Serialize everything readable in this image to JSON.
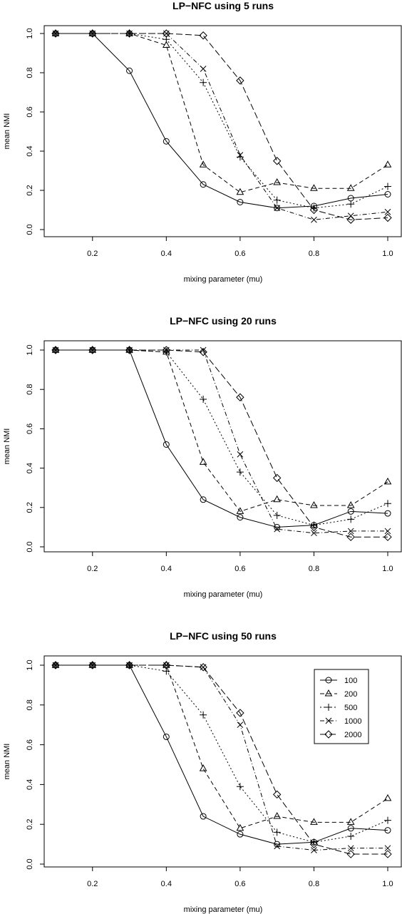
{
  "chart_data": [
    {
      "type": "line",
      "title": "LP−NFC using 5 runs",
      "xlabel": "mixing parameter (mu)",
      "ylabel": "mean NMI",
      "x": [
        0.1,
        0.2,
        0.3,
        0.4,
        0.5,
        0.6,
        0.7,
        0.8,
        0.9,
        1.0
      ],
      "xlim": [
        0.1,
        1.0
      ],
      "ylim": [
        0.0,
        1.0
      ],
      "xticks": [
        "0.2",
        "0.4",
        "0.6",
        "0.8",
        "1.0"
      ],
      "yticks": [
        "0.0",
        "0.2",
        "0.4",
        "0.6",
        "0.8",
        "1.0"
      ],
      "legend": false,
      "series": [
        {
          "values": [
            1.0,
            1.0,
            0.81,
            0.45,
            0.23,
            0.14,
            0.11,
            0.12,
            0.16,
            0.18
          ]
        },
        {
          "values": [
            1.0,
            1.0,
            1.0,
            0.94,
            0.33,
            0.19,
            0.24,
            0.21,
            0.21,
            0.33
          ]
        },
        {
          "values": [
            1.0,
            1.0,
            1.0,
            0.97,
            0.75,
            0.37,
            0.15,
            0.11,
            0.13,
            0.22
          ]
        },
        {
          "values": [
            1.0,
            1.0,
            1.0,
            1.0,
            0.82,
            0.38,
            0.11,
            0.05,
            0.07,
            0.09
          ]
        },
        {
          "values": [
            1.0,
            1.0,
            1.0,
            1.0,
            0.99,
            0.76,
            0.35,
            0.1,
            0.05,
            0.06
          ]
        }
      ]
    },
    {
      "type": "line",
      "title": "LP−NFC using 20 runs",
      "xlabel": "mixing parameter (mu)",
      "ylabel": "mean NMI",
      "x": [
        0.1,
        0.2,
        0.3,
        0.4,
        0.5,
        0.6,
        0.7,
        0.8,
        0.9,
        1.0
      ],
      "xlim": [
        0.1,
        1.0
      ],
      "ylim": [
        0.0,
        1.0
      ],
      "xticks": [
        "0.2",
        "0.4",
        "0.6",
        "0.8",
        "1.0"
      ],
      "yticks": [
        "0.0",
        "0.2",
        "0.4",
        "0.6",
        "0.8",
        "1.0"
      ],
      "legend": false,
      "series": [
        {
          "values": [
            1.0,
            1.0,
            1.0,
            0.52,
            0.24,
            0.15,
            0.1,
            0.11,
            0.18,
            0.17
          ]
        },
        {
          "values": [
            1.0,
            1.0,
            1.0,
            0.99,
            0.43,
            0.18,
            0.24,
            0.21,
            0.21,
            0.33
          ]
        },
        {
          "values": [
            1.0,
            1.0,
            1.0,
            0.99,
            0.75,
            0.38,
            0.16,
            0.11,
            0.14,
            0.22
          ]
        },
        {
          "values": [
            1.0,
            1.0,
            1.0,
            1.0,
            1.0,
            0.47,
            0.09,
            0.07,
            0.08,
            0.08
          ]
        },
        {
          "values": [
            1.0,
            1.0,
            1.0,
            1.0,
            0.99,
            0.76,
            0.35,
            0.1,
            0.05,
            0.05
          ]
        }
      ]
    },
    {
      "type": "line",
      "title": "LP−NFC using 50 runs",
      "xlabel": "mixing parameter (mu)",
      "ylabel": "mean NMI",
      "x": [
        0.1,
        0.2,
        0.3,
        0.4,
        0.5,
        0.6,
        0.7,
        0.8,
        0.9,
        1.0
      ],
      "xlim": [
        0.1,
        1.0
      ],
      "ylim": [
        0.0,
        1.0
      ],
      "xticks": [
        "0.2",
        "0.4",
        "0.6",
        "0.8",
        "1.0"
      ],
      "yticks": [
        "0.0",
        "0.2",
        "0.4",
        "0.6",
        "0.8",
        "1.0"
      ],
      "legend": true,
      "legend_position": "right",
      "series": [
        {
          "name": "100",
          "line": "solid",
          "marker": "circle",
          "values": [
            1.0,
            1.0,
            1.0,
            0.64,
            0.24,
            0.15,
            0.1,
            0.11,
            0.18,
            0.17
          ]
        },
        {
          "name": "200",
          "line": "dashed",
          "marker": "triangle",
          "values": [
            1.0,
            1.0,
            1.0,
            1.0,
            0.48,
            0.18,
            0.24,
            0.21,
            0.21,
            0.33
          ]
        },
        {
          "name": "500",
          "line": "dotted",
          "marker": "plus",
          "values": [
            1.0,
            1.0,
            1.0,
            0.97,
            0.75,
            0.39,
            0.16,
            0.11,
            0.14,
            0.22
          ]
        },
        {
          "name": "1000",
          "line": "dotdash",
          "marker": "cross",
          "values": [
            1.0,
            1.0,
            1.0,
            1.0,
            0.99,
            0.7,
            0.09,
            0.07,
            0.08,
            0.08
          ]
        },
        {
          "name": "2000",
          "line": "longdash",
          "marker": "diamond",
          "values": [
            1.0,
            1.0,
            1.0,
            1.0,
            0.99,
            0.76,
            0.35,
            0.1,
            0.05,
            0.05
          ]
        }
      ]
    }
  ]
}
